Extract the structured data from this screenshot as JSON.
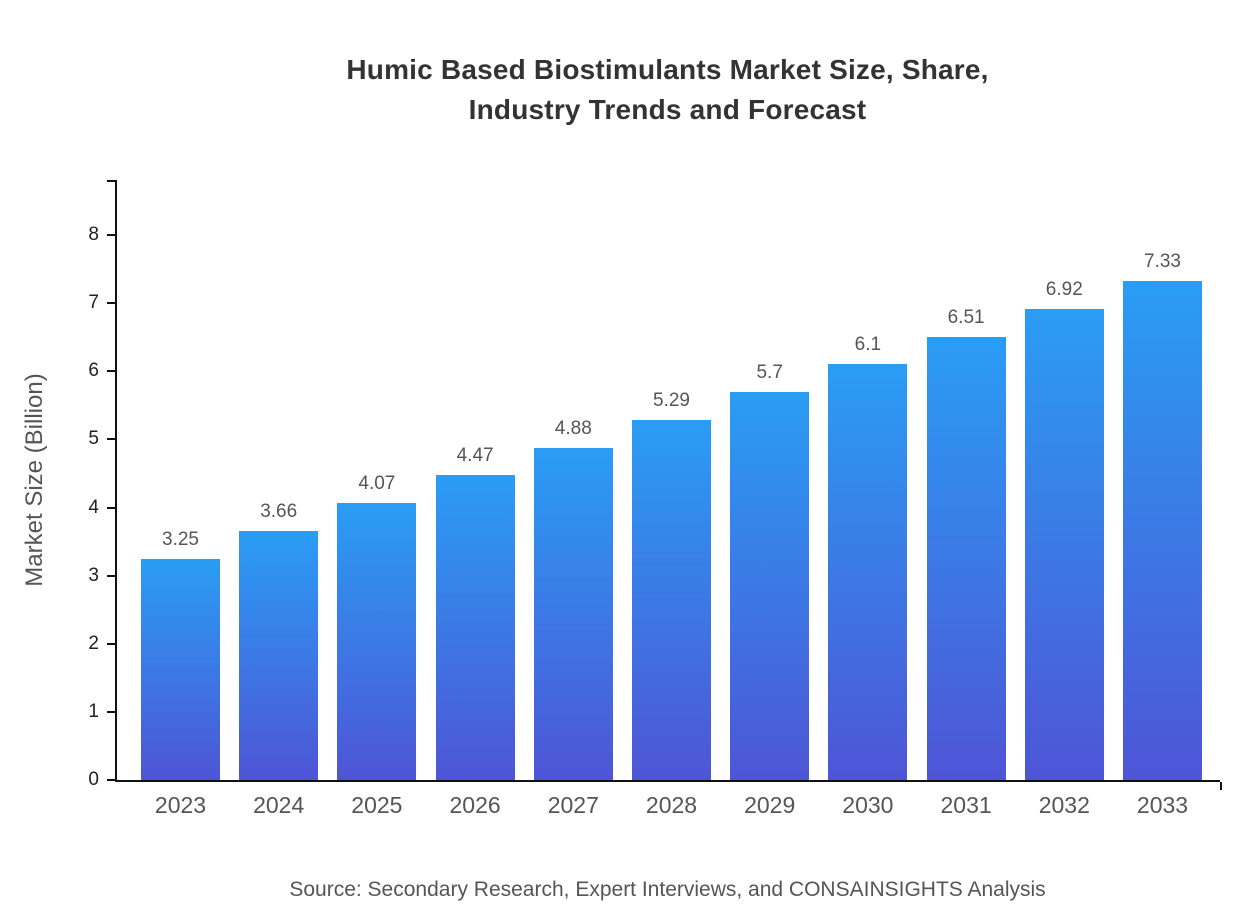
{
  "title": {
    "line1": "Humic Based Biostimulants Market Size, Share,",
    "line2": "Industry Trends and Forecast"
  },
  "source": "Source: Secondary Research, Expert Interviews, and CONSAINSIGHTS Analysis",
  "chart_data": {
    "type": "bar",
    "title": "Humic Based Biostimulants Market Size, Share, Industry Trends and Forecast",
    "categories": [
      "2023",
      "2024",
      "2025",
      "2026",
      "2027",
      "2028",
      "2029",
      "2030",
      "2031",
      "2032",
      "2033"
    ],
    "values": [
      3.25,
      3.66,
      4.07,
      4.47,
      4.88,
      5.29,
      5.7,
      6.1,
      6.51,
      6.92,
      7.33
    ],
    "value_labels": [
      "3.25",
      "3.66",
      "4.07",
      "4.47",
      "4.88",
      "5.29",
      "5.7",
      "6.1",
      "6.51",
      "6.92",
      "7.33"
    ],
    "xlabel": "",
    "ylabel": "Market Size (Billion)",
    "ylim": [
      0,
      8.8
    ],
    "yticks": [
      0,
      1,
      2,
      3,
      4,
      5,
      6,
      7,
      8
    ],
    "grid": false,
    "legend": "none",
    "colors": {
      "bar_gradient_top": "#2a9df4",
      "bar_gradient_bottom": "#4e55d6",
      "axis": "#111111",
      "tick_text": "#222222",
      "label_text": "#555555",
      "title_text": "#333333"
    }
  }
}
